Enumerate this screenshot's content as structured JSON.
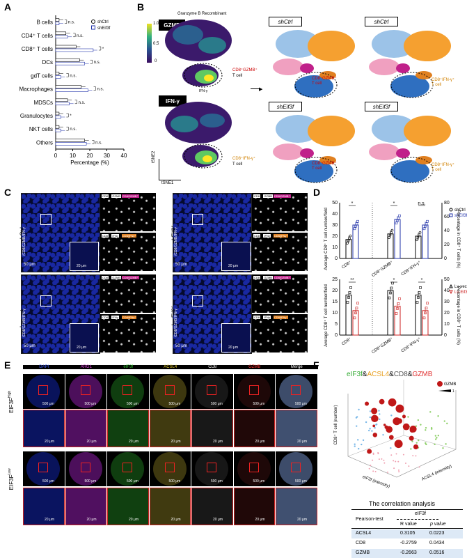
{
  "panels": {
    "A": "A",
    "B": "B",
    "C": "C",
    "D": "D",
    "E": "E",
    "F": "F"
  },
  "panelA": {
    "chart_data": {
      "type": "bar",
      "orientation": "horizontal",
      "categories": [
        "B cells",
        "CD4⁺ T cells",
        "CD8⁺ T cells",
        "DCs",
        "gdT cells",
        "Macrophages",
        "MDSCs",
        "Granulocytes",
        "NKT cells",
        "Others"
      ],
      "series": [
        {
          "name": "shCtrl",
          "values": [
            2,
            6,
            12,
            14,
            2,
            15,
            7,
            2,
            2,
            17
          ]
        },
        {
          "name": "shEif3f",
          "values": [
            2,
            7,
            22,
            17,
            3,
            19,
            8,
            3,
            3,
            18
          ]
        }
      ],
      "significance": [
        "n.s.",
        "n.s.",
        "*",
        "n.s.",
        "n.s.",
        "n.s.",
        "n.s.",
        "*",
        "n.s.",
        "n.s."
      ],
      "xlabel": "Percentage (%)",
      "xticks": [
        "0",
        "10",
        "20",
        "30",
        "40"
      ],
      "xlim": [
        0,
        40
      ],
      "legend": [
        "shCtrl",
        "shEif3f"
      ]
    }
  },
  "panelB": {
    "title": "Granzyme B Recombinant",
    "labels": {
      "gzmb": "GZMB",
      "ifng": "IFN-γ",
      "cd8gzmb": "CD8⁺GZMB⁺",
      "cd8ifn": "CD8⁺IFN-γ⁺",
      "tcell": "T cell",
      "ifn_small": "IFN-γ",
      "tsne1": "tSNE1",
      "tsne2": "tSNE2"
    },
    "colorbar": [
      "1.0",
      "0.5",
      "0"
    ],
    "right_titles": [
      "shCtrl",
      "shCtrl",
      "shEif3f",
      "shEif3f"
    ]
  },
  "panelC": {
    "groups": [
      "shCtrl",
      "shEif3f",
      "Lv-vector",
      "Lv-Eif3f"
    ],
    "stain_label": "/CD8/GZMB/IFN-γ",
    "chips": [
      "CD8",
      "GZMB",
      "CD8/GZMB⁺",
      "CD8",
      "IFNγ",
      "CD8/IFNγ⁺"
    ],
    "scale_big": "50 μm",
    "scale_small": "20 μm"
  },
  "panelD": {
    "ylabel_left": "Average CD8⁺ T cell number/field",
    "ylabel_right": "Percentage in CD8⁺ T cells (%)",
    "top": {
      "chart_data": {
        "type": "bar",
        "categories": [
          "CD8⁺",
          "CD8⁺GZMB⁺",
          "CD8⁺IFN-γ⁺"
        ],
        "series": [
          {
            "name": "shCtrl",
            "values": [
              17,
              22,
              20
            ]
          },
          {
            "name": "shEif3f",
            "values": [
              30,
              35,
              30
            ]
          }
        ],
        "yticks_left": [
          "0",
          "10",
          "20",
          "30",
          "40",
          "50"
        ],
        "yticks_right": [
          "0",
          "20",
          "40",
          "60",
          "80"
        ],
        "significance": [
          "*",
          "*",
          "n.s."
        ],
        "legend": [
          "shCtrl",
          "shEif3f"
        ]
      }
    },
    "bottom": {
      "chart_data": {
        "type": "bar",
        "categories": [
          "CD8⁺",
          "CD8⁺GZMB⁺",
          "CD8⁺IFN-γ⁺"
        ],
        "series": [
          {
            "name": "Lv-vector",
            "values": [
              18,
              20,
              18
            ]
          },
          {
            "name": "Lv-Eif3f",
            "values": [
              11,
              13,
              11
            ]
          }
        ],
        "yticks_left": [
          "0",
          "5",
          "10",
          "15",
          "20",
          "25"
        ],
        "yticks_right": [
          "0",
          "10",
          "20",
          "30",
          "40",
          "50"
        ],
        "significance": [
          "**",
          "*",
          "*"
        ],
        "legend": [
          "Lv-vector",
          "Lv-Eif3f"
        ]
      }
    }
  },
  "panelE": {
    "channels": [
      "DAPI",
      "ARG1",
      "eIF3f",
      "ACSL4",
      "CD8",
      "GZMB",
      "Merge"
    ],
    "channel_colors": [
      "#3a5cff",
      "#e040e0",
      "#33cc33",
      "#e8d030",
      "#ffffff",
      "#ff3030",
      "#ffffff"
    ],
    "rows": [
      "EIF3F^High",
      "EIF3F^Low"
    ],
    "row_main": [
      "EIF3F",
      "EIF3F"
    ],
    "row_sup": [
      "High",
      "Low"
    ],
    "scale_big": "500 μm",
    "scale_small": "20 μm"
  },
  "panelF": {
    "title_parts": [
      "eIF3f",
      "&",
      "ACSL4",
      "&",
      "CD8",
      "&",
      "GZMB"
    ],
    "title_colors": [
      "#33aa33",
      "#000",
      "#e8a020",
      "#000",
      "#555",
      "#000",
      "#e03030"
    ],
    "legend_gzmb": "GZMB",
    "legend_one": "1",
    "zlabel": "CD8⁺ T cell (number)",
    "xlabel": "eIF3f (intensity)",
    "ylabel": "ACSL4 (intensity)",
    "table_title": "The correlation analysis",
    "table": {
      "col_group": "eIF3f",
      "test": "Pearson-test",
      "headers": [
        "R value",
        "p value"
      ],
      "rows": [
        {
          "name": "ACSL4",
          "r": "0.3105",
          "p": "0.0223"
        },
        {
          "name": "CD8",
          "r": "-0.2759",
          "p": "0.0434"
        },
        {
          "name": "GZMB",
          "r": "-0.2663",
          "p": "0.0516"
        }
      ]
    }
  }
}
